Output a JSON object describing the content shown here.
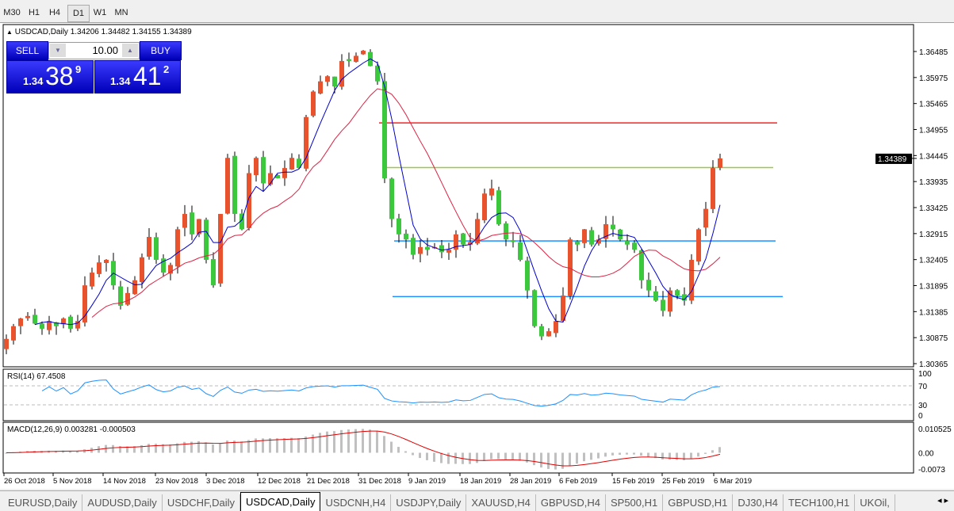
{
  "timeframes": [
    "M30",
    "H1",
    "H4",
    "D1",
    "W1",
    "MN"
  ],
  "active_timeframe": "D1",
  "chart_header": {
    "arrow": "▲",
    "symbol": "USDCAD,Daily",
    "ohlc": "1.34206 1.34482 1.34155 1.34389"
  },
  "trade_panel": {
    "sell_label": "SELL",
    "buy_label": "BUY",
    "lot": "10.00",
    "sell_prefix": "1.34",
    "sell_big": "38",
    "sell_sup": "9",
    "buy_prefix": "1.34",
    "buy_big": "41",
    "buy_sup": "2"
  },
  "price_axis": [
    "1.36485",
    "1.35975",
    "1.35465",
    "1.34955",
    "1.34445",
    "1.33935",
    "1.33425",
    "1.32915",
    "1.32405",
    "1.31895",
    "1.31385",
    "1.30875",
    "1.30365"
  ],
  "current_price": "1.34389",
  "rsi": {
    "label": "RSI(14) 67.4508",
    "levels": [
      "100",
      "70",
      "30",
      "0"
    ]
  },
  "macd": {
    "label": "MACD(12,26,9) 0.003281 -0.000503",
    "levels": [
      "0.010525",
      "0.00",
      "-0.0073"
    ]
  },
  "date_labels": [
    "26 Oct 2018",
    "5 Nov 2018",
    "14 Nov 2018",
    "23 Nov 2018",
    "3 Dec 2018",
    "12 Dec 2018",
    "21 Dec 2018",
    "31 Dec 2018",
    "9 Jan 2019",
    "18 Jan 2019",
    "28 Jan 2019",
    "6 Feb 2019",
    "15 Feb 2019",
    "25 Feb 2019",
    "6 Mar 2019"
  ],
  "tabs": [
    "EURUSD,Daily",
    "AUDUSD,Daily",
    "USDCHF,Daily",
    "USDCAD,Daily",
    "USDCNH,H4",
    "USDJPY,Daily",
    "XAUUSD,H4",
    "GBPUSD,H4",
    "SP500,H1",
    "GBPUSD,H1",
    "DJ30,H4",
    "TECH100,H1",
    "UKOil,"
  ],
  "active_tab": "USDCAD,Daily",
  "colors": {
    "bull": "#e8532d",
    "bear": "#3cc83c",
    "ma_fast": "#0000cc",
    "ma_slow": "#dd2244",
    "rsi": "#1e90ff",
    "macd_signal": "#dd0000",
    "macd_hist": "#c0c0c0"
  },
  "chart_data": {
    "type": "candlestick",
    "symbol": "USDCAD",
    "timeframe": "Daily",
    "ylim": [
      1.30365,
      1.36485
    ],
    "last_bar": {
      "open": 1.34206,
      "high": 1.34482,
      "low": 1.34155,
      "close": 1.34389
    },
    "close": [
      1.3085,
      1.311,
      1.3125,
      1.313,
      1.3115,
      1.3105,
      1.312,
      1.311,
      1.3125,
      1.3105,
      1.312,
      1.319,
      1.3215,
      1.3235,
      1.324,
      1.319,
      1.315,
      1.3175,
      1.32,
      1.3245,
      1.3285,
      1.324,
      1.3215,
      1.323,
      1.33,
      1.333,
      1.329,
      1.332,
      1.324,
      1.319,
      1.333,
      1.344,
      1.333,
      1.33,
      1.341,
      1.344,
      1.339,
      1.341,
      1.34,
      1.342,
      1.344,
      1.342,
      1.352,
      1.357,
      1.359,
      1.36,
      1.358,
      1.363,
      1.363,
      1.364,
      1.365,
      1.362,
      1.359,
      1.34,
      1.332,
      1.329,
      1.328,
      1.325,
      1.3265,
      1.326,
      1.3265,
      1.3255,
      1.326,
      1.329,
      1.327,
      1.3275,
      1.332,
      1.337,
      1.338,
      1.331,
      1.328,
      1.3275,
      1.324,
      1.318,
      1.311,
      1.309,
      1.31,
      1.312,
      1.317,
      1.328,
      1.327,
      1.33,
      1.327,
      1.328,
      1.331,
      1.33,
      1.328,
      1.327,
      1.326,
      1.32,
      1.318,
      1.316,
      1.314,
      1.318,
      1.317,
      1.316,
      1.324,
      1.33,
      1.334,
      1.342,
      1.34389
    ],
    "hlines": [
      {
        "price": 1.35085,
        "color": "#ff2020"
      },
      {
        "price": 1.3421,
        "color": "#9acd32"
      },
      {
        "price": 1.3277,
        "color": "#1e90ff"
      },
      {
        "price": 1.3168,
        "color": "#1e90ff"
      }
    ]
  }
}
